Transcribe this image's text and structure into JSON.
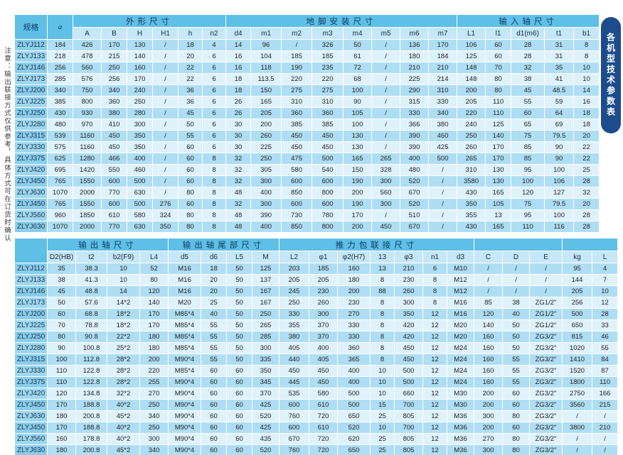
{
  "page": {
    "note_vertical": "注意：输出联接方式仅供参考，具体方式可在订货时确认",
    "side_tab_label": "各机型技术参数表",
    "colors": {
      "tab_bg": "#1c4c8c",
      "group_header_bg": "#5ebfe7",
      "column_header_bg": "#c6e7f7",
      "row_odd_bg": "#aedef4",
      "row_even_bg": "#def2fb"
    }
  },
  "top_table": {
    "groups": [
      {
        "label": "规格",
        "rs": 2,
        "plain": true
      },
      {
        "label": "a",
        "rs": 2,
        "plain": true,
        "italic": true
      },
      {
        "label": "外形尺寸",
        "cs": 6
      },
      {
        "label": "地脚安装尺寸",
        "cs": 8
      },
      {
        "label": "输入轴尺寸",
        "cs": 5
      }
    ],
    "columns": [
      "A",
      "B",
      "H",
      "H1",
      "h",
      "n2",
      "d4",
      "m1",
      "m2",
      "m3",
      "m4",
      "m5",
      "m6",
      "m7",
      "L1",
      "l1",
      "d1(m6)",
      "t1",
      "b1"
    ],
    "rows": [
      [
        "ZLYJ112",
        "184",
        "426",
        "170",
        "130",
        "/",
        "18",
        "4",
        "14",
        "96",
        "/",
        "326",
        "50",
        "/",
        "136",
        "170",
        "106",
        "60",
        "28",
        "31",
        "8"
      ],
      [
        "ZLYJ133",
        "218",
        "478",
        "215",
        "140",
        "/",
        "20",
        "6",
        "16",
        "104",
        "185",
        "185",
        "61",
        "/",
        "180",
        "184",
        "125",
        "60",
        "28",
        "31",
        "8"
      ],
      [
        "ZLYJ146",
        "256",
        "560",
        "250",
        "160",
        "/",
        "22",
        "6",
        "16",
        "118",
        "190",
        "235",
        "72",
        "/",
        "210",
        "210",
        "148",
        "70",
        "32",
        "35",
        "10"
      ],
      [
        "ZLYJ173",
        "285",
        "576",
        "256",
        "170",
        "/",
        "22",
        "6",
        "18",
        "113.5",
        "220",
        "220",
        "68",
        "/",
        "225",
        "214",
        "148",
        "80",
        "38",
        "41",
        "10"
      ],
      [
        "ZLYJ200",
        "340",
        "750",
        "340",
        "240",
        "/",
        "36",
        "6",
        "18",
        "150",
        "275",
        "275",
        "100",
        "/",
        "290",
        "310",
        "200",
        "80",
        "45",
        "48.5",
        "14"
      ],
      [
        "ZLYJ225",
        "385",
        "800",
        "360",
        "250",
        "/",
        "36",
        "6",
        "26",
        "165",
        "310",
        "310",
        "90",
        "/",
        "315",
        "330",
        "205",
        "110",
        "55",
        "59",
        "16"
      ],
      [
        "ZLYJ250",
        "430",
        "930",
        "380",
        "280",
        "/",
        "45",
        "6",
        "26",
        "205",
        "360",
        "360",
        "105",
        "/",
        "330",
        "340",
        "220",
        "110",
        "60",
        "64",
        "18"
      ],
      [
        "ZLYJ280",
        "480",
        "970",
        "410",
        "300",
        "/",
        "50",
        "6",
        "30",
        "200",
        "385",
        "385",
        "100",
        "/",
        "366",
        "380",
        "240",
        "125",
        "65",
        "69",
        "18"
      ],
      [
        "ZLYJ315",
        "539",
        "1160",
        "450",
        "350",
        "/",
        "55",
        "6",
        "30",
        "260",
        "450",
        "450",
        "130",
        "/",
        "390",
        "460",
        "250",
        "140",
        "75",
        "79.5",
        "20"
      ],
      [
        "ZLYJ330",
        "575",
        "1160",
        "450",
        "350",
        "/",
        "60",
        "6",
        "30",
        "225",
        "450",
        "450",
        "130",
        "/",
        "390",
        "425",
        "260",
        "170",
        "85",
        "90",
        "22"
      ],
      [
        "ZLYJ375",
        "625",
        "1280",
        "466",
        "400",
        "/",
        "60",
        "8",
        "32",
        "250",
        "475",
        "500",
        "165",
        "265",
        "400",
        "500",
        "265",
        "170",
        "85",
        "90",
        "22"
      ],
      [
        "ZLYJ420",
        "695",
        "1420",
        "550",
        "460",
        "/",
        "60",
        "8",
        "32",
        "305",
        "580",
        "540",
        "150",
        "328",
        "480",
        "/",
        "310",
        "130",
        "95",
        "100",
        "25"
      ],
      [
        "ZLYJ450",
        "765",
        "1550",
        "600",
        "500",
        "/",
        "60",
        "8",
        "32",
        "300",
        "600",
        "600",
        "190",
        "300",
        "520",
        "/",
        "3580",
        "130",
        "100",
        "106",
        "28"
      ],
      [
        "ZLYJ630",
        "1070",
        "2000",
        "770",
        "630",
        "/",
        "80",
        "8",
        "48",
        "400",
        "850",
        "800",
        "200",
        "560",
        "670",
        "/",
        "430",
        "165",
        "120",
        "127",
        "32"
      ],
      [
        "ZLYJ450",
        "765",
        "1550",
        "600",
        "500",
        "276",
        "60",
        "8",
        "32",
        "300",
        "600",
        "600",
        "190",
        "300",
        "520",
        "/",
        "350",
        "105",
        "75",
        "79.5",
        "20"
      ],
      [
        "ZLYJ560",
        "960",
        "1850",
        "610",
        "580",
        "324",
        "80",
        "8",
        "48",
        "390",
        "730",
        "780",
        "170",
        "/",
        "510",
        "/",
        "355",
        "13",
        "95",
        "100",
        "28"
      ],
      [
        "ZLYJ630",
        "1070",
        "2000",
        "770",
        "630",
        "350",
        "80",
        "8",
        "48",
        "400",
        "850",
        "800",
        "200",
        "450",
        "670",
        "/",
        "430",
        "165",
        "110",
        "116",
        "28"
      ]
    ]
  },
  "bottom_table": {
    "groups": [
      {
        "label": "",
        "rs": 2,
        "plain": true
      },
      {
        "label": "输出轴尺寸",
        "cs": 4
      },
      {
        "label": "输出轴尾部尺寸",
        "cs": 4
      },
      {
        "label": "推力包联接尺寸",
        "cs": 7
      },
      {
        "label": "",
        "cs": 3
      },
      {
        "label": "",
        "cs": 2
      }
    ],
    "columns": [
      "D2(HB)",
      "t2",
      "b2(F9)",
      "L4",
      "d5",
      "d6",
      "L5",
      "M",
      "L2",
      "φ1",
      "φ2(H7)",
      "13",
      "φ3",
      "n1",
      "d3",
      "C",
      "D",
      "E",
      "kg",
      "L"
    ],
    "rows": [
      [
        "ZLYJ112",
        "35",
        "38.3",
        "10",
        "52",
        "M16",
        "18",
        "50",
        "125",
        "203",
        "185",
        "160",
        "13",
        "210",
        "6",
        "M10",
        "/",
        "/",
        "/",
        "95",
        "4"
      ],
      [
        "ZLYJ133",
        "38",
        "41.3",
        "10",
        "80",
        "M16",
        "20",
        "50",
        "137",
        "205",
        "205",
        "180",
        "8",
        "230",
        "8",
        "M12",
        "/",
        "/",
        "/",
        "144",
        "7"
      ],
      [
        "ZLYJ146",
        "45",
        "48.8",
        "14",
        "120",
        "M16",
        "20",
        "50",
        "167",
        "245",
        "230",
        "200",
        "88",
        "260",
        "8",
        "M12",
        "/",
        "/",
        "/",
        "205",
        "10"
      ],
      [
        "ZLYJ173",
        "50",
        "57.6",
        "14*2",
        "140",
        "M20",
        "25",
        "50",
        "167",
        "250",
        "260",
        "230",
        "8",
        "300",
        "8",
        "M16",
        "85",
        "38",
        "ZG1/2\"",
        "256",
        "12"
      ],
      [
        "ZLYJ200",
        "60",
        "68.8",
        "18*2",
        "170",
        "M85*4",
        "40",
        "50",
        "250",
        "330",
        "300",
        "270",
        "8",
        "350",
        "12",
        "M16",
        "120",
        "40",
        "ZG1/2\"",
        "500",
        "28"
      ],
      [
        "ZLYJ225",
        "70",
        "78.8",
        "18*2",
        "170",
        "M85*4",
        "55",
        "50",
        "265",
        "355",
        "370",
        "330",
        "8",
        "420",
        "12",
        "M20",
        "140",
        "50",
        "ZG1/2\"",
        "650",
        "33"
      ],
      [
        "ZLYJ250",
        "80",
        "90.8",
        "22*2",
        "180",
        "M85*4",
        "55",
        "50",
        "285",
        "380",
        "370",
        "330",
        "8",
        "420",
        "12",
        "M20",
        "160",
        "50",
        "ZG3/2\"",
        "815",
        "46"
      ],
      [
        "ZLYJ280",
        "90",
        "100.8",
        "25*2",
        "180",
        "M85*4",
        "55",
        "50",
        "300",
        "405",
        "400",
        "360",
        "8",
        "450",
        "12",
        "M24",
        "160",
        "50",
        "ZG3/2\"",
        "1020",
        "55"
      ],
      [
        "ZLYJ315",
        "100",
        "112.8",
        "28*2",
        "200",
        "M90*4",
        "55",
        "50",
        "335",
        "440",
        "405",
        "365",
        "8",
        "450",
        "12",
        "M24",
        "160",
        "55",
        "ZG3/2\"",
        "1410",
        "84"
      ],
      [
        "ZLYJ330",
        "110",
        "122.8",
        "28*2",
        "220",
        "M85*4",
        "60",
        "60",
        "350",
        "450",
        "450",
        "400",
        "10",
        "500",
        "12",
        "M24",
        "160",
        "55",
        "ZG3/2\"",
        "1520",
        "87"
      ],
      [
        "ZLYJ375",
        "110",
        "122.8",
        "28*2",
        "255",
        "M90*4",
        "60",
        "60",
        "345",
        "445",
        "450",
        "400",
        "10",
        "500",
        "12",
        "M24",
        "160",
        "55",
        "ZG3/2\"",
        "1800",
        "110"
      ],
      [
        "ZLYJ420",
        "120",
        "134.8",
        "32*2",
        "270",
        "M90*4",
        "60",
        "60",
        "370",
        "535",
        "580",
        "500",
        "10",
        "660",
        "12",
        "M30",
        "200",
        "60",
        "ZG3/2\"",
        "2750",
        "166"
      ],
      [
        "ZLYJ450",
        "170",
        "188.8",
        "40*2",
        "250",
        "M90*4",
        "60",
        "60",
        "425",
        "600",
        "610",
        "500",
        "15",
        "700",
        "12",
        "M30",
        "200",
        "60",
        "ZG3/2\"",
        "3560",
        "215"
      ],
      [
        "ZLYJ630",
        "180",
        "200.8",
        "45*2",
        "340",
        "M90*4",
        "60",
        "60",
        "520",
        "760",
        "720",
        "650",
        "25",
        "805",
        "12",
        "M36",
        "300",
        "80",
        "ZG3/2\"",
        "/",
        "/"
      ],
      [
        "ZLYJ450",
        "170",
        "188.8",
        "40*2",
        "250",
        "M90*4",
        "60",
        "60",
        "425",
        "600",
        "610",
        "520",
        "10",
        "700",
        "12",
        "M36",
        "200",
        "60",
        "ZG3/2\"",
        "3800",
        "210"
      ],
      [
        "ZLYJ560",
        "160",
        "178.8",
        "40*2",
        "300",
        "M90*4",
        "60",
        "60",
        "435",
        "670",
        "720",
        "620",
        "25",
        "805",
        "12",
        "M36",
        "270",
        "80",
        "ZG3/2\"",
        "/",
        "/"
      ],
      [
        "ZLYJ630",
        "180",
        "200.8",
        "45*2",
        "340",
        "M90*4",
        "60",
        "60",
        "520",
        "760",
        "720",
        "650",
        "25",
        "805",
        "12",
        "M36",
        "300",
        "80",
        "ZG3/2\"",
        "/",
        "/"
      ]
    ]
  }
}
